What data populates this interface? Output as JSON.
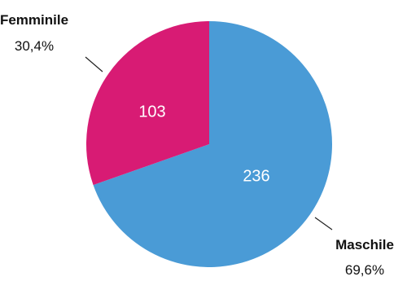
{
  "chart_data": {
    "type": "pie",
    "title": "",
    "slices": [
      {
        "name": "Maschile",
        "value": 236,
        "percent_label": "69,6%",
        "value_label": "236",
        "color": "#4a9bd6"
      },
      {
        "name": "Femminile",
        "value": 103,
        "percent_label": "30,4%",
        "value_label": "103",
        "color": "#d81b74"
      }
    ],
    "start_angle_deg": 0,
    "direction": "clockwise",
    "legend": "none"
  }
}
